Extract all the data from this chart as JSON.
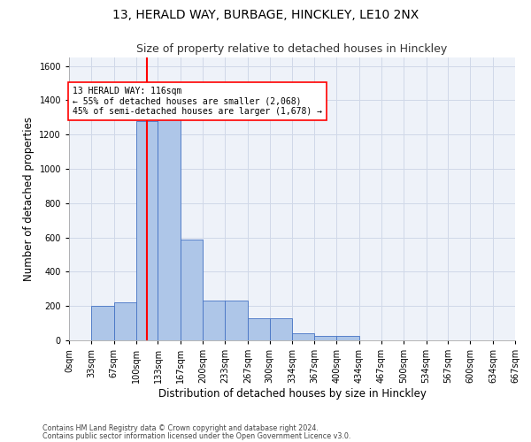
{
  "title": "13, HERALD WAY, BURBAGE, HINCKLEY, LE10 2NX",
  "subtitle": "Size of property relative to detached houses in Hinckley",
  "xlabel": "Distribution of detached houses by size in Hinckley",
  "ylabel": "Number of detached properties",
  "footnote1": "Contains HM Land Registry data © Crown copyright and database right 2024.",
  "footnote2": "Contains public sector information licensed under the Open Government Licence v3.0.",
  "bin_edges": [
    0,
    33,
    67,
    100,
    133,
    167,
    200,
    233,
    267,
    300,
    334,
    367,
    400,
    434,
    467,
    500,
    534,
    567,
    600,
    634,
    667
  ],
  "bin_labels": [
    "0sqm",
    "33sqm",
    "67sqm",
    "100sqm",
    "133sqm",
    "167sqm",
    "200sqm",
    "233sqm",
    "267sqm",
    "300sqm",
    "334sqm",
    "367sqm",
    "400sqm",
    "434sqm",
    "467sqm",
    "500sqm",
    "534sqm",
    "567sqm",
    "600sqm",
    "634sqm",
    "667sqm"
  ],
  "bar_heights": [
    0,
    200,
    220,
    1280,
    1300,
    590,
    230,
    230,
    130,
    130,
    40,
    25,
    25,
    0,
    0,
    0,
    0,
    0,
    0,
    0
  ],
  "bar_color": "#aec6e8",
  "bar_edge_color": "#4472c4",
  "grid_color": "#d0d8e8",
  "background_color": "#eef2f9",
  "red_line_x": 116,
  "ylim": [
    0,
    1650
  ],
  "yticks": [
    0,
    200,
    400,
    600,
    800,
    1000,
    1200,
    1400,
    1600
  ],
  "annotation_text": "13 HERALD WAY: 116sqm\n← 55% of detached houses are smaller (2,068)\n45% of semi-detached houses are larger (1,678) →",
  "title_fontsize": 10,
  "subtitle_fontsize": 9,
  "axis_label_fontsize": 8.5,
  "tick_fontsize": 7,
  "annot_fontsize": 7
}
